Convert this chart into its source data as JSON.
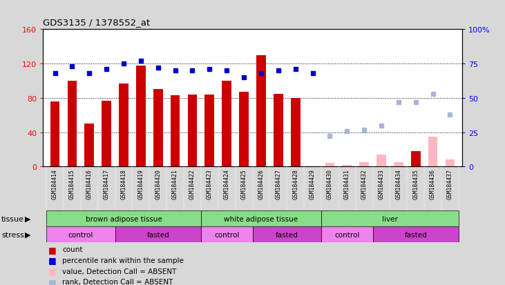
{
  "title": "GDS3135 / 1378552_at",
  "samples": [
    "GSM184414",
    "GSM184415",
    "GSM184416",
    "GSM184417",
    "GSM184418",
    "GSM184419",
    "GSM184420",
    "GSM184421",
    "GSM184422",
    "GSM184423",
    "GSM184424",
    "GSM184425",
    "GSM184426",
    "GSM184427",
    "GSM184428",
    "GSM184429",
    "GSM184430",
    "GSM184431",
    "GSM184432",
    "GSM184433",
    "GSM184434",
    "GSM184435",
    "GSM184436",
    "GSM184437"
  ],
  "count_values": [
    76,
    100,
    50,
    77,
    97,
    118,
    90,
    83,
    84,
    84,
    100,
    87,
    130,
    85,
    80,
    null,
    null,
    null,
    null,
    null,
    null,
    18,
    null,
    null
  ],
  "count_absent": [
    null,
    null,
    null,
    null,
    null,
    null,
    null,
    null,
    null,
    null,
    null,
    null,
    null,
    null,
    null,
    null,
    4,
    2,
    5,
    14,
    5,
    null,
    35,
    8
  ],
  "rank_values": [
    68,
    73,
    68,
    71,
    75,
    77,
    72,
    70,
    70,
    71,
    70,
    65,
    68,
    70,
    71,
    68,
    null,
    null,
    null,
    null,
    null,
    null,
    null,
    null
  ],
  "rank_absent": [
    null,
    null,
    null,
    null,
    null,
    null,
    null,
    null,
    null,
    null,
    null,
    null,
    null,
    null,
    null,
    null,
    22,
    26,
    27,
    30,
    47,
    47,
    53,
    38
  ],
  "tissue_groups": [
    {
      "label": "brown adipose tissue",
      "start": 0,
      "end": 9
    },
    {
      "label": "white adipose tissue",
      "start": 9,
      "end": 16
    },
    {
      "label": "liver",
      "start": 16,
      "end": 24
    }
  ],
  "stress_groups": [
    {
      "label": "control",
      "start": 0,
      "end": 4,
      "color": "#ee82ee"
    },
    {
      "label": "fasted",
      "start": 4,
      "end": 9,
      "color": "#cc44cc"
    },
    {
      "label": "control",
      "start": 9,
      "end": 12,
      "color": "#ee82ee"
    },
    {
      "label": "fasted",
      "start": 12,
      "end": 16,
      "color": "#cc44cc"
    },
    {
      "label": "control",
      "start": 16,
      "end": 19,
      "color": "#ee82ee"
    },
    {
      "label": "fasted",
      "start": 19,
      "end": 24,
      "color": "#cc44cc"
    }
  ],
  "ylim_left": [
    0,
    160
  ],
  "ylim_right": [
    0,
    100
  ],
  "yticks_left": [
    0,
    40,
    80,
    120,
    160
  ],
  "yticks_right": [
    0,
    25,
    50,
    75,
    100
  ],
  "bar_color_present": "#cc0000",
  "bar_color_absent": "#ffb6c1",
  "dot_color_present": "#0000cc",
  "dot_color_absent": "#aab4d8",
  "tissue_color": "#88dd88",
  "xtick_bg": "#c8c8c8",
  "fig_bg": "#d8d8d8"
}
